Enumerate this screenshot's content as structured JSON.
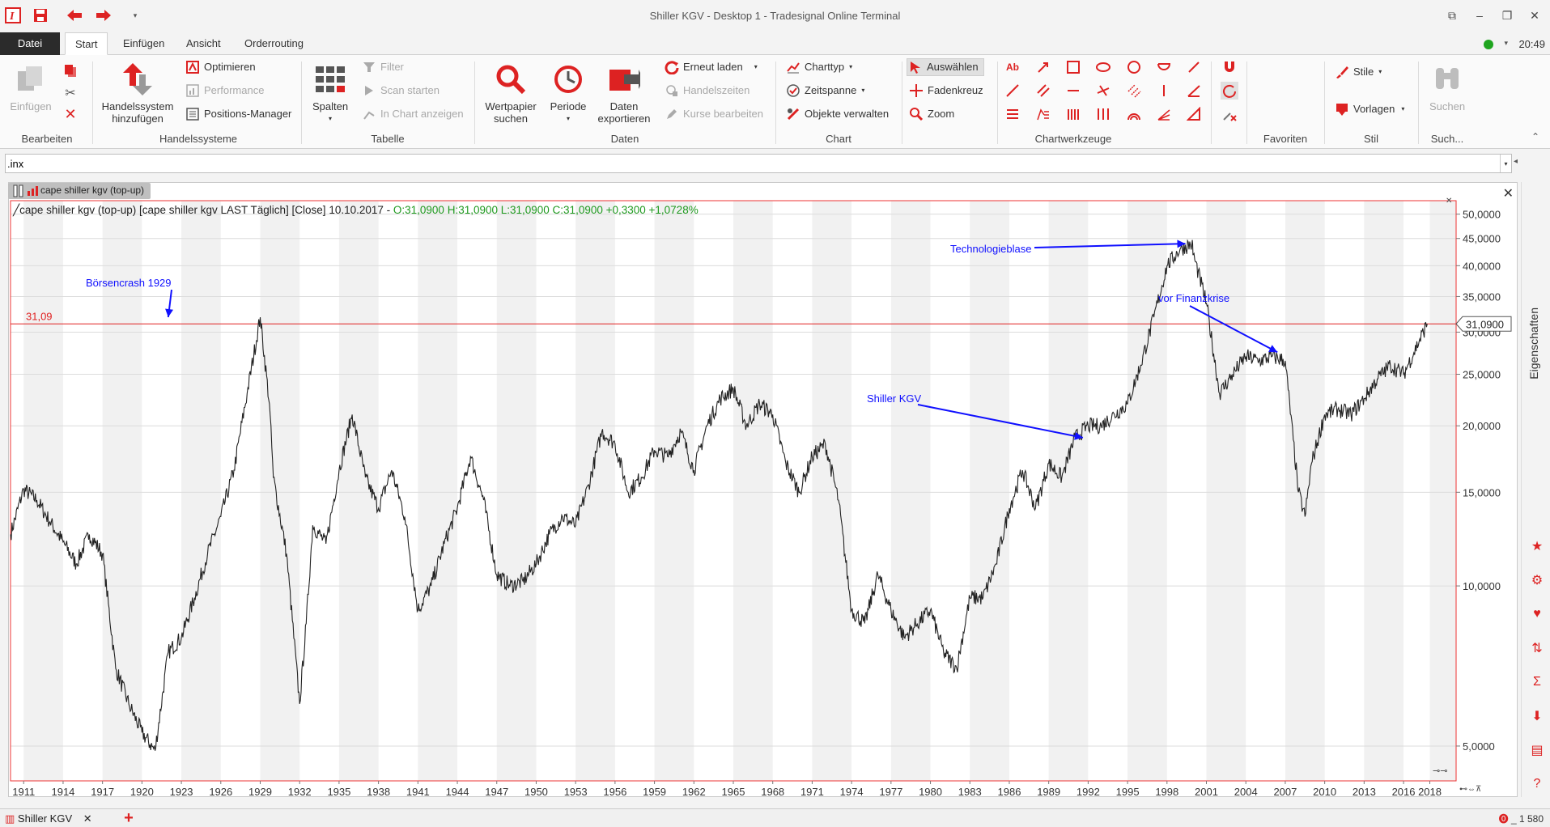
{
  "window": {
    "title": "Shiller KGV - Desktop 1 - Tradesignal Online Terminal",
    "controls": [
      "restore-panel",
      "minimize",
      "maximize",
      "close"
    ]
  },
  "quick_access": [
    "app-logo-icon",
    "save-icon",
    "undo-arrow-icon",
    "redo-arrow-icon",
    "customize-dropdown-icon"
  ],
  "menu_tabs": [
    {
      "label": "Datei"
    },
    {
      "label": "Start"
    },
    {
      "label": "Einfügen"
    },
    {
      "label": "Ansicht"
    },
    {
      "label": "Orderrouting"
    }
  ],
  "status": {
    "time": "20:49",
    "connection_color": "#1fa51f"
  },
  "ribbon": {
    "groups": {
      "bearbeiten": "Bearbeiten",
      "handelssysteme": "Handelssysteme",
      "tabelle": "Tabelle",
      "daten": "Daten",
      "chart": "Chart",
      "chartwerkzeuge": "Chartwerkzeuge",
      "favoriten": "Favoriten",
      "stil": "Stil",
      "such": "Such..."
    },
    "einfuegen": "Einfügen",
    "handelssystem_l1": "Handelssystem",
    "handelssystem_l2": "hinzufügen",
    "optimieren": "Optimieren",
    "performance": "Performance",
    "positions_manager": "Positions-Manager",
    "spalten": "Spalten",
    "filter": "Filter",
    "scan_starten": "Scan starten",
    "in_chart_anzeigen": "In Chart anzeigen",
    "wertpapier_l1": "Wertpapier",
    "wertpapier_l2": "suchen",
    "periode": "Periode",
    "daten_l1": "Daten",
    "daten_l2": "exportieren",
    "erneut_laden": "Erneut laden",
    "handelszeiten": "Handelszeiten",
    "kurse_bearbeiten": "Kurse bearbeiten",
    "charttyp": "Charttyp",
    "zeitspanne": "Zeitspanne",
    "objekte_verwalten": "Objekte verwalten",
    "auswaehlen": "Auswählen",
    "fadenkreuz": "Fadenkreuz",
    "zoom": "Zoom",
    "stile": "Stile",
    "vorlagen": "Vorlagen",
    "suchen": "Suchen"
  },
  "symbol_input": {
    "value": ".inx"
  },
  "chart_window": {
    "tab_label": "cape shiller kgv (top-up)",
    "legend_prefix": "cape shiller kgv (top-up) [cape shiller kgv LAST Täglich] [Close] 10.10.2017 - ",
    "legend_ohlc": "O:31,0900 H:31,0900 L:31,0900 C:31,0900 +0,3300 +1,0728%",
    "hline_label": "31,09",
    "last_value_label": "31,0900",
    "annotations": [
      {
        "text": "Börsencrash 1929"
      },
      {
        "text": "Technologieblase"
      },
      {
        "text": "vor Finanzkrise"
      },
      {
        "text": "Shiller KGV"
      }
    ]
  },
  "chart_data": {
    "type": "line",
    "series": [
      {
        "name": "cape shiller kgv (top-up)"
      }
    ],
    "x": [
      1910,
      1911,
      1912,
      1913,
      1914,
      1915,
      1916,
      1917,
      1918,
      1919,
      1920,
      1921,
      1922,
      1923,
      1924,
      1925,
      1926,
      1927,
      1928,
      1929,
      1929.7,
      1930,
      1931,
      1932,
      1932.5,
      1933,
      1934,
      1935,
      1936,
      1937,
      1938,
      1939,
      1940,
      1941,
      1942,
      1943,
      1944,
      1945,
      1946,
      1947,
      1948,
      1949,
      1950,
      1951,
      1952,
      1953,
      1954,
      1955,
      1956,
      1957,
      1958,
      1959,
      1960,
      1961,
      1962,
      1963,
      1964,
      1965,
      1966,
      1967,
      1968,
      1969,
      1970,
      1971,
      1972,
      1973,
      1974,
      1975,
      1976,
      1977,
      1978,
      1979,
      1980,
      1981,
      1982,
      1983,
      1984,
      1985,
      1986,
      1987,
      1988,
      1989,
      1990,
      1991,
      1992,
      1993,
      1994,
      1995,
      1996,
      1997,
      1998,
      1999,
      1999.9,
      2000,
      2001,
      2002,
      2003,
      2004,
      2005,
      2006,
      2007,
      2008,
      2008.5,
      2009,
      2010,
      2011,
      2012,
      2013,
      2014,
      2015,
      2016,
      2017.8
    ],
    "y": [
      12.5,
      15.2,
      14.5,
      13.2,
      12.1,
      11.0,
      12.5,
      11.5,
      7.0,
      6.0,
      5.3,
      4.9,
      7.5,
      8.0,
      9.5,
      11.5,
      13.5,
      16.5,
      23.0,
      32.0,
      22.0,
      16.0,
      11.5,
      6.0,
      8.5,
      13.0,
      12.0,
      16.5,
      21.0,
      16.0,
      14.0,
      16.5,
      13.5,
      9.0,
      10.0,
      12.0,
      14.0,
      17.5,
      14.5,
      10.5,
      10.0,
      10.2,
      11.0,
      12.5,
      13.5,
      13.0,
      15.5,
      19.5,
      18.5,
      15.0,
      16.0,
      18.0,
      17.5,
      19.5,
      16.5,
      20.0,
      22.5,
      23.5,
      20.0,
      22.0,
      21.0,
      17.0,
      15.0,
      17.5,
      18.5,
      14.5,
      9.0,
      8.5,
      10.5,
      9.0,
      8.0,
      8.5,
      9.0,
      7.5,
      7.0,
      9.5,
      9.5,
      11.0,
      14.0,
      16.5,
      14.0,
      17.0,
      16.0,
      19.0,
      20.0,
      20.0,
      21.0,
      22.0,
      26.0,
      32.0,
      40.0,
      43.0,
      44.0,
      42.0,
      34.0,
      23.0,
      25.0,
      27.0,
      26.5,
      27.0,
      26.5,
      15.0,
      13.5,
      17.0,
      21.0,
      21.5,
      21.0,
      22.5,
      24.5,
      26.0,
      25.0,
      31.09
    ],
    "xlim": [
      1910,
      2020
    ],
    "yscale": "log",
    "ylim": [
      4.3,
      53
    ],
    "x_ticks": [
      "1911",
      "1914",
      "1917",
      "1920",
      "1923",
      "1926",
      "1929",
      "1932",
      "1935",
      "1938",
      "1941",
      "1944",
      "1947",
      "1950",
      "1953",
      "1956",
      "1959",
      "1962",
      "1965",
      "1968",
      "1971",
      "1974",
      "1977",
      "1980",
      "1983",
      "1986",
      "1989",
      "1992",
      "1995",
      "1998",
      "2001",
      "2004",
      "2007",
      "2010",
      "2013",
      "2016",
      "2018"
    ],
    "y_ticks": [
      "5,0000",
      "10,0000",
      "15,0000",
      "20,0000",
      "25,0000",
      "30,0000",
      "35,0000",
      "40,0000",
      "45,0000",
      "50,0000"
    ],
    "hline": 31.09,
    "line_color": "#222222",
    "hline_color": "#e02020",
    "annotation_color": "#1010ff"
  }
}
